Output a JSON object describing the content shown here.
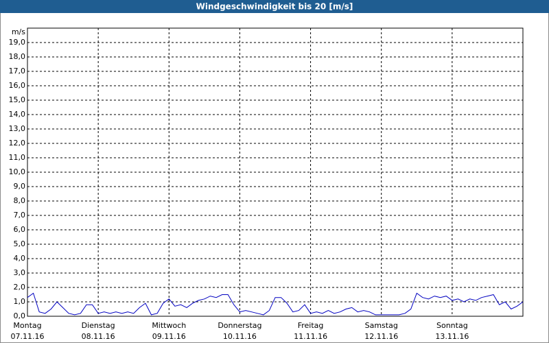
{
  "chart_data": {
    "type": "line",
    "title": "Windgeschwindigkeit bis 20 [m/s]",
    "y_unit": "m/s",
    "x": [
      0,
      2,
      4,
      6,
      8,
      10,
      12,
      14,
      16,
      18,
      20,
      22,
      24,
      26,
      28,
      30,
      32,
      34,
      36,
      38,
      40,
      42,
      44,
      46,
      48,
      50,
      52,
      54,
      56,
      58,
      60,
      62,
      64,
      66,
      68,
      70,
      72,
      74,
      76,
      78,
      80,
      82,
      84,
      86,
      88,
      90,
      92,
      94,
      96,
      98,
      100,
      102,
      104,
      106,
      108,
      110,
      112,
      114,
      116,
      118,
      120,
      122,
      124,
      126,
      128,
      130,
      132,
      134,
      136,
      138,
      140,
      142,
      144,
      146,
      148,
      150,
      152,
      154,
      156,
      158,
      160,
      162,
      164,
      166,
      168
    ],
    "values": [
      1.3,
      1.6,
      0.3,
      0.2,
      0.5,
      1.0,
      0.6,
      0.2,
      0.1,
      0.2,
      0.8,
      0.8,
      0.2,
      0.3,
      0.2,
      0.3,
      0.2,
      0.3,
      0.2,
      0.6,
      0.9,
      0.1,
      0.2,
      0.9,
      1.2,
      0.7,
      0.8,
      0.6,
      0.9,
      1.1,
      1.2,
      1.4,
      1.3,
      1.5,
      1.5,
      0.8,
      0.3,
      0.4,
      0.3,
      0.2,
      0.1,
      0.4,
      1.3,
      1.3,
      0.9,
      0.3,
      0.4,
      0.8,
      0.2,
      0.3,
      0.2,
      0.4,
      0.2,
      0.3,
      0.5,
      0.6,
      0.3,
      0.4,
      0.3,
      0.1,
      0.1,
      0.1,
      0.1,
      0.1,
      0.2,
      0.5,
      1.6,
      1.3,
      1.2,
      1.4,
      1.3,
      1.4,
      1.1,
      1.2,
      1.0,
      1.2,
      1.1,
      1.3,
      1.4,
      1.5,
      0.8,
      1.0,
      0.5,
      0.7,
      1.0
    ],
    "color": "#0000c0",
    "xlim": [
      0,
      168
    ],
    "xticks": [
      {
        "value": 0,
        "label": "07.11.16"
      },
      {
        "value": 24,
        "label": "08.11.16"
      },
      {
        "value": 48,
        "label": "09.11.16"
      },
      {
        "value": 72,
        "label": "10.11.16"
      },
      {
        "value": 96,
        "label": "11.11.16"
      },
      {
        "value": 120,
        "label": "12.11.16"
      },
      {
        "value": 144,
        "label": "13.11.16"
      }
    ],
    "xtick_weekdays": [
      "Montag",
      "Dienstag",
      "Mittwoch",
      "Donnerstag",
      "Freitag",
      "Samstag",
      "Sonntag"
    ],
    "ylim": [
      0,
      20
    ],
    "yticks": [
      {
        "value": 0,
        "label": "0,0"
      },
      {
        "value": 1,
        "label": "1,0"
      },
      {
        "value": 2,
        "label": "2,0"
      },
      {
        "value": 3,
        "label": "3,0"
      },
      {
        "value": 4,
        "label": "4,0"
      },
      {
        "value": 5,
        "label": "5,0"
      },
      {
        "value": 6,
        "label": "6,0"
      },
      {
        "value": 7,
        "label": "7,0"
      },
      {
        "value": 8,
        "label": "8,0"
      },
      {
        "value": 9,
        "label": "9,0"
      },
      {
        "value": 10,
        "label": "10,0"
      },
      {
        "value": 11,
        "label": "11,0"
      },
      {
        "value": 12,
        "label": "12,0"
      },
      {
        "value": 13,
        "label": "13,0"
      },
      {
        "value": 14,
        "label": "14,0"
      },
      {
        "value": 15,
        "label": "15,0"
      },
      {
        "value": 16,
        "label": "16,0"
      },
      {
        "value": 17,
        "label": "17,0"
      },
      {
        "value": 18,
        "label": "18,0"
      },
      {
        "value": 19,
        "label": "19,0"
      }
    ],
    "grid": true
  }
}
